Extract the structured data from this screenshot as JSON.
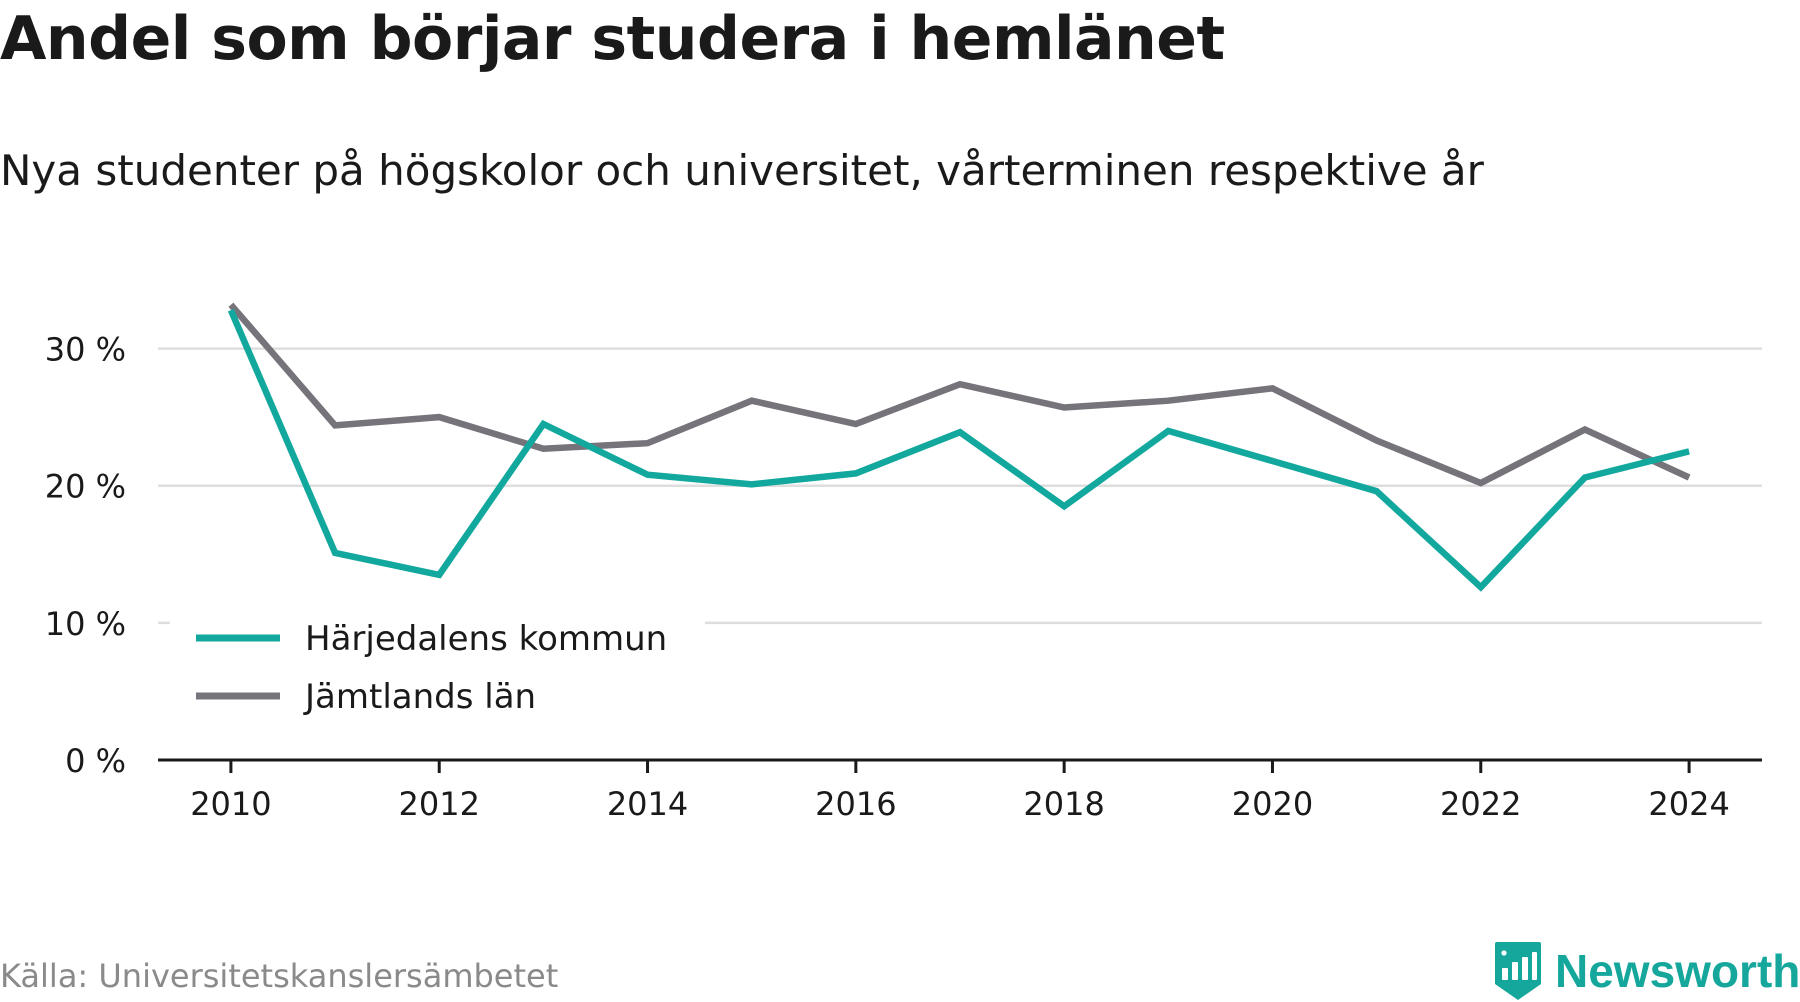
{
  "header": {
    "title": "Andel som börjar studera i hemlänet",
    "subtitle": "Nya studenter på högskolor och universitet, vårterminen respektive år"
  },
  "footer": {
    "source": "Källa: Universitetskanslersämbetet",
    "brand": "Newsworthy"
  },
  "colors": {
    "harjedalen": "#13a89e",
    "jamtland": "#76737a",
    "grid": "#dedede",
    "axis": "#1a1a1a",
    "brand": "#15a79c"
  },
  "chart_data": {
    "type": "line",
    "title": "Andel som börjar studera i hemlänet",
    "subtitle": "Nya studenter på högskolor och universitet, vårterminen respektive år",
    "x": [
      2010,
      2011,
      2012,
      2013,
      2014,
      2015,
      2016,
      2017,
      2018,
      2019,
      2020,
      2021,
      2022,
      2023,
      2024
    ],
    "series": [
      {
        "name": "Härjedalens kommun",
        "color": "#13a89e",
        "values": [
          32.8,
          15.1,
          13.5,
          24.5,
          20.8,
          20.1,
          20.9,
          23.9,
          18.5,
          24.0,
          21.8,
          19.6,
          12.6,
          20.6,
          22.5
        ]
      },
      {
        "name": "Jämtlands län",
        "color": "#76737a",
        "values": [
          33.2,
          24.4,
          25.0,
          22.7,
          23.1,
          26.2,
          24.5,
          27.4,
          25.7,
          26.2,
          27.1,
          23.3,
          20.2,
          24.1,
          20.6
        ]
      }
    ],
    "x_ticks": [
      2010,
      2012,
      2014,
      2016,
      2018,
      2020,
      2022,
      2024
    ],
    "x_tick_labels": [
      "2010",
      "2012",
      "2014",
      "2016",
      "2018",
      "2020",
      "2022",
      "2024"
    ],
    "y_ticks": [
      0,
      10,
      20,
      30
    ],
    "y_tick_labels": [
      "0 %",
      "10 %",
      "20 %",
      "30 %"
    ],
    "xlim": [
      2009.3,
      2024.7
    ],
    "ylim": [
      0,
      35
    ],
    "xlabel": "",
    "ylabel": "",
    "grid": true,
    "legend_position": "bottom-left"
  }
}
